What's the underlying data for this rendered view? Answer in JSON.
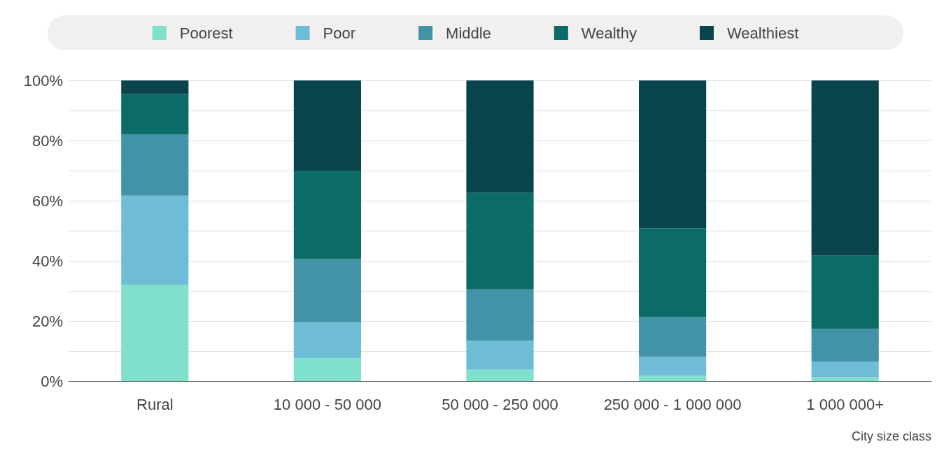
{
  "chart_data": {
    "type": "bar",
    "stacked": true,
    "xlabel": "City size class",
    "categories": [
      "Rural",
      "10 000 - 50 000",
      "50 000 - 250 000",
      "250 000 - 1 000 000",
      "1 000 000+"
    ],
    "series": [
      {
        "name": "Poorest",
        "color": "#7fe0cc",
        "values": [
          32.1,
          7.6,
          3.8,
          1.8,
          1.3
        ]
      },
      {
        "name": "Poor",
        "color": "#6fbcd6",
        "values": [
          29.6,
          11.9,
          9.7,
          6.3,
          5.2
        ]
      },
      {
        "name": "Middle",
        "color": "#4293a8",
        "values": [
          20.4,
          21.1,
          17.0,
          13.2,
          10.8
        ]
      },
      {
        "name": "Wealthy",
        "color": "#0b6b66",
        "values": [
          13.4,
          29.4,
          32.1,
          29.6,
          24.4
        ]
      },
      {
        "name": "Wealthiest",
        "color": "#09444c",
        "values": [
          4.5,
          30.0,
          37.4,
          49.1,
          58.3
        ]
      }
    ],
    "ylim": [
      0,
      100
    ],
    "yticks": [
      {
        "value": 0,
        "label": "0%"
      },
      {
        "value": 10,
        "label": null
      },
      {
        "value": 20,
        "label": "20%"
      },
      {
        "value": 30,
        "label": null
      },
      {
        "value": 40,
        "label": "40%"
      },
      {
        "value": 50,
        "label": null
      },
      {
        "value": 60,
        "label": "60%"
      },
      {
        "value": 70,
        "label": null
      },
      {
        "value": 80,
        "label": "80%"
      },
      {
        "value": 90,
        "label": null
      },
      {
        "value": 100,
        "label": "100%"
      }
    ],
    "grid": true,
    "legend": "top"
  }
}
